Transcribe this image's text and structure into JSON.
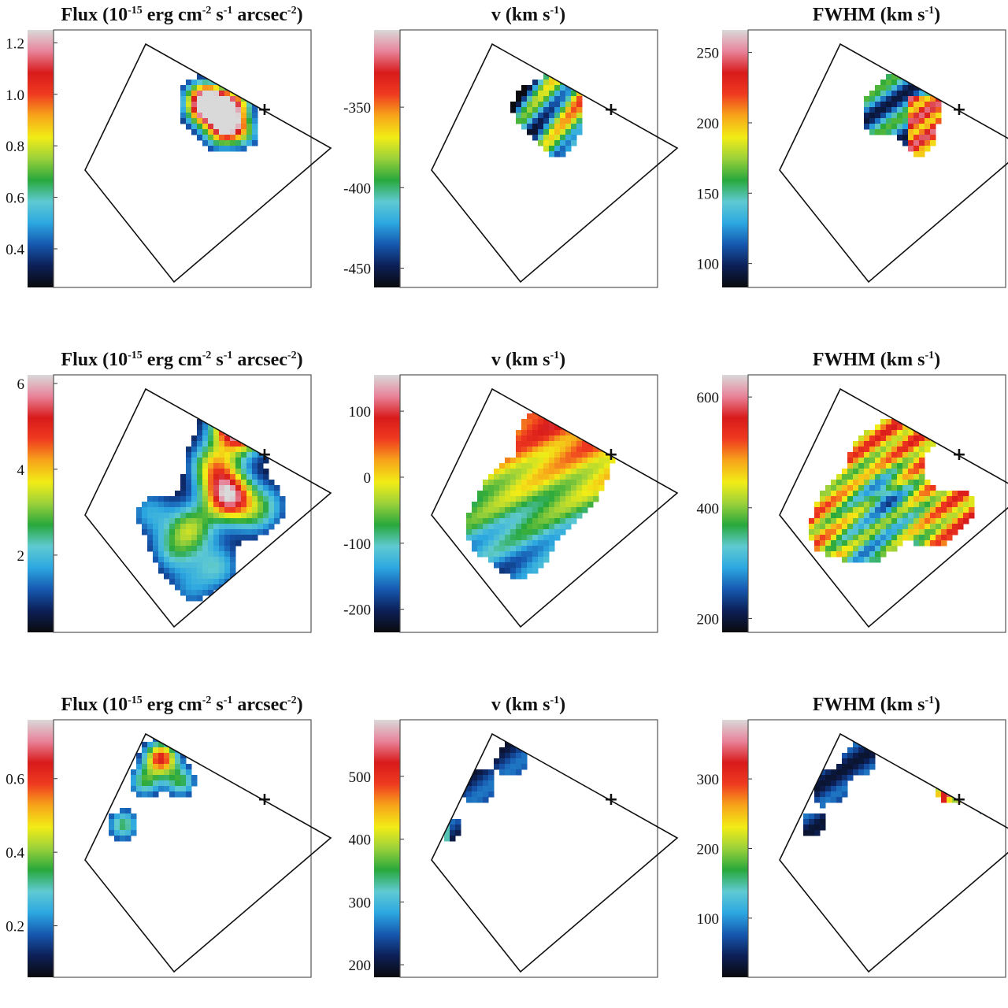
{
  "figure": {
    "colormap": [
      "#0a0a0c",
      "#0c1f56",
      "#1658b0",
      "#2ca7e0",
      "#5fcad2",
      "#28a83c",
      "#9ad13a",
      "#f2ec16",
      "#f7a51a",
      "#ef3b20",
      "#d81a1a",
      "#e8839a",
      "#d9d9d9"
    ]
  },
  "chart_data": [
    {
      "type": "heatmap",
      "title_base": "Flux (10",
      "title_parts": [
        "-15",
        " erg cm",
        "-2",
        " s",
        "-1",
        " arcsec",
        "-2",
        ")"
      ],
      "ticks": [
        "0.4",
        "0.6",
        "0.8",
        "1.0",
        "1.2"
      ],
      "tick_values": [
        0.4,
        0.6,
        0.8,
        1.0,
        1.2
      ],
      "range": [
        0.25,
        1.25
      ],
      "marker": "+"
    },
    {
      "type": "heatmap",
      "title_base": "v (km s",
      "title_parts": [
        "-1",
        ")"
      ],
      "ticks": [
        "-450",
        "-400",
        "-350"
      ],
      "tick_values": [
        -450,
        -400,
        -350
      ],
      "range": [
        -462,
        -302
      ],
      "marker": "+"
    },
    {
      "type": "heatmap",
      "title_base": "FWHM (km s",
      "title_parts": [
        "-1",
        ")"
      ],
      "ticks": [
        "100",
        "150",
        "200",
        "250"
      ],
      "tick_values": [
        100,
        150,
        200,
        250
      ],
      "range": [
        83,
        266
      ],
      "marker": "+"
    },
    {
      "type": "heatmap",
      "title_base": "Flux (10",
      "title_parts": [
        "-15",
        " erg cm",
        "-2",
        " s",
        "-1",
        " arcsec",
        "-2",
        ")"
      ],
      "ticks": [
        "2",
        "4",
        "6"
      ],
      "tick_values": [
        2,
        4,
        6
      ],
      "range": [
        0.2,
        6.2
      ],
      "marker": "+"
    },
    {
      "type": "heatmap",
      "title_base": "v (km s",
      "title_parts": [
        "-1",
        ")"
      ],
      "ticks": [
        "-200",
        "-100",
        "0",
        "100"
      ],
      "tick_values": [
        -200,
        -100,
        0,
        100
      ],
      "range": [
        -235,
        155
      ],
      "marker": "+"
    },
    {
      "type": "heatmap",
      "title_base": "FWHM (km s",
      "title_parts": [
        "-1",
        ")"
      ],
      "ticks": [
        "200",
        "400",
        "600"
      ],
      "tick_values": [
        200,
        400,
        600
      ],
      "range": [
        175,
        640
      ],
      "marker": "+"
    },
    {
      "type": "heatmap",
      "title_base": "Flux (10",
      "title_parts": [
        "-15",
        " erg cm",
        "-2",
        " s",
        "-1",
        " arcsec",
        "-2",
        ")"
      ],
      "ticks": [
        "0.2",
        "0.4",
        "0.6"
      ],
      "tick_values": [
        0.2,
        0.4,
        0.6
      ],
      "range": [
        0.06,
        0.76
      ],
      "marker": "+"
    },
    {
      "type": "heatmap",
      "title_base": "v (km s",
      "title_parts": [
        "-1",
        ")"
      ],
      "ticks": [
        "200",
        "300",
        "400",
        "500"
      ],
      "tick_values": [
        200,
        300,
        400,
        500
      ],
      "range": [
        180,
        590
      ],
      "marker": "+"
    },
    {
      "type": "heatmap",
      "title_base": "FWHM (km s",
      "title_parts": [
        "-1",
        ")"
      ],
      "ticks": [
        "100",
        "200",
        "300"
      ],
      "tick_values": [
        100,
        200,
        300
      ],
      "range": [
        15,
        385
      ],
      "marker": "+"
    }
  ]
}
